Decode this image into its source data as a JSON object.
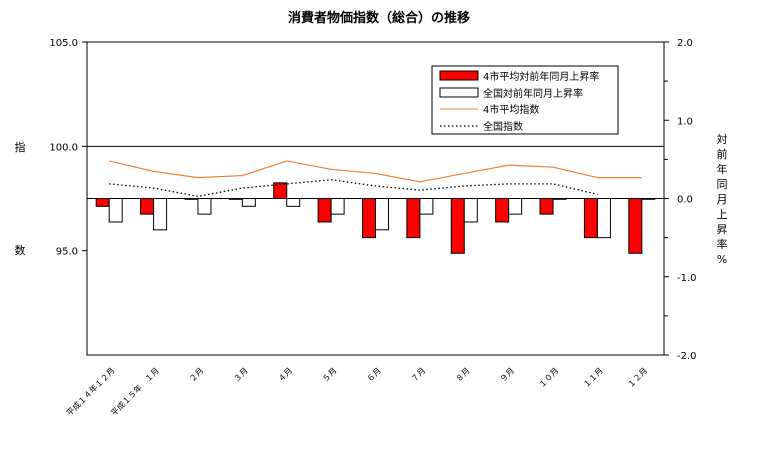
{
  "chart_data": {
    "type": "bar",
    "title": "消費者物価指数（総合）の推移",
    "categories": [
      "平成１４年１２月",
      "平成１５年　１月",
      "２月",
      "３月",
      "４月",
      "５月",
      "６月",
      "７月",
      "８月",
      "９月",
      "１０月",
      "１１月",
      "１２月"
    ],
    "left_axis": {
      "label_chars": [
        "指",
        "数"
      ],
      "range": [
        90.0,
        105.0
      ],
      "ticks": [
        "105.0",
        "100.0",
        "95.0"
      ]
    },
    "right_axis": {
      "label_chars": [
        "対",
        "前",
        "年",
        "同",
        "月",
        "上",
        "昇",
        "率",
        "%"
      ],
      "range": [
        -2.0,
        2.0
      ],
      "ticks": [
        "2.0",
        "1.0",
        "0.0",
        "-1.0",
        "-2.0"
      ]
    },
    "series": [
      {
        "name": "4市平均対前年同月上昇率",
        "kind": "bar",
        "axis": "right",
        "color": "#ff0000",
        "values": [
          -0.1,
          -0.2,
          0.0,
          0.0,
          0.2,
          -0.3,
          -0.5,
          -0.5,
          -0.7,
          -0.3,
          -0.2,
          -0.5,
          -0.7
        ]
      },
      {
        "name": "全国対前年同月上昇率",
        "kind": "bar",
        "axis": "right",
        "color": "#ffffff",
        "values": [
          -0.3,
          -0.4,
          -0.2,
          -0.1,
          -0.1,
          -0.2,
          -0.4,
          -0.2,
          -0.3,
          -0.2,
          0.0,
          -0.5,
          0.0
        ]
      },
      {
        "name": "4市平均指数",
        "kind": "line",
        "axis": "left",
        "color": "#f08030",
        "values": [
          99.3,
          98.8,
          98.5,
          98.6,
          99.3,
          98.9,
          98.7,
          98.3,
          98.7,
          99.1,
          99.0,
          98.5,
          98.5
        ]
      },
      {
        "name": "全国指数",
        "kind": "dotted-line",
        "axis": "left",
        "color": "#000000",
        "values": [
          98.2,
          98.0,
          97.6,
          98.0,
          98.2,
          98.4,
          98.1,
          97.9,
          98.1,
          98.2,
          98.2,
          97.7,
          null
        ]
      }
    ],
    "legend_position": "top-right",
    "reference_line": 100.0
  }
}
